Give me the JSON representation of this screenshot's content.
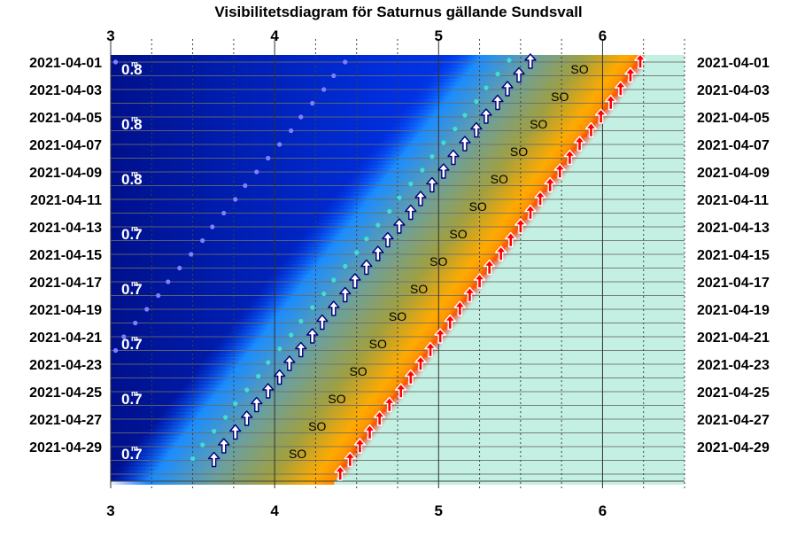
{
  "chart_data": {
    "type": "visibility-diagram",
    "title": "Visibilitetsdiagram för Saturnus gällande Sundsvall",
    "x_range": [
      3,
      6.5
    ],
    "x_ticks": [
      "3",
      "4",
      "5",
      "6"
    ],
    "x_tick_values": [
      3,
      4,
      5,
      6
    ],
    "dates": [
      "2021-04-01",
      "2021-04-03",
      "2021-04-05",
      "2021-04-07",
      "2021-04-09",
      "2021-04-11",
      "2021-04-13",
      "2021-04-15",
      "2021-04-17",
      "2021-04-19",
      "2021-04-21",
      "2021-04-23",
      "2021-04-25",
      "2021-04-27",
      "2021-04-29"
    ],
    "day_range": [
      1,
      31
    ],
    "planet_rise": [
      {
        "day": 1,
        "time": 5.56
      },
      {
        "day": 2,
        "time": 5.49
      },
      {
        "day": 3,
        "time": 5.42
      },
      {
        "day": 4,
        "time": 5.36
      },
      {
        "day": 5,
        "time": 5.29
      },
      {
        "day": 6,
        "time": 5.23
      },
      {
        "day": 7,
        "time": 5.16
      },
      {
        "day": 8,
        "time": 5.09
      },
      {
        "day": 9,
        "time": 5.03
      },
      {
        "day": 10,
        "time": 4.96
      },
      {
        "day": 11,
        "time": 4.89
      },
      {
        "day": 12,
        "time": 4.83
      },
      {
        "day": 13,
        "time": 4.76
      },
      {
        "day": 14,
        "time": 4.69
      },
      {
        "day": 15,
        "time": 4.63
      },
      {
        "day": 16,
        "time": 4.56
      },
      {
        "day": 17,
        "time": 4.49
      },
      {
        "day": 18,
        "time": 4.43
      },
      {
        "day": 19,
        "time": 4.36
      },
      {
        "day": 20,
        "time": 4.29
      },
      {
        "day": 21,
        "time": 4.23
      },
      {
        "day": 22,
        "time": 4.16
      },
      {
        "day": 23,
        "time": 4.09
      },
      {
        "day": 24,
        "time": 4.03
      },
      {
        "day": 25,
        "time": 3.96
      },
      {
        "day": 26,
        "time": 3.89
      },
      {
        "day": 27,
        "time": 3.83
      },
      {
        "day": 28,
        "time": 3.76
      },
      {
        "day": 29,
        "time": 3.69
      },
      {
        "day": 30,
        "time": 3.63
      }
    ],
    "sun_rise": [
      {
        "day": 1,
        "time": 6.23
      },
      {
        "day": 2,
        "time": 6.17
      },
      {
        "day": 3,
        "time": 6.11
      },
      {
        "day": 4,
        "time": 6.05
      },
      {
        "day": 5,
        "time": 5.99
      },
      {
        "day": 6,
        "time": 5.93
      },
      {
        "day": 7,
        "time": 5.86
      },
      {
        "day": 8,
        "time": 5.8
      },
      {
        "day": 9,
        "time": 5.74
      },
      {
        "day": 10,
        "time": 5.68
      },
      {
        "day": 11,
        "time": 5.62
      },
      {
        "day": 12,
        "time": 5.56
      },
      {
        "day": 13,
        "time": 5.5
      },
      {
        "day": 14,
        "time": 5.44
      },
      {
        "day": 15,
        "time": 5.38
      },
      {
        "day": 16,
        "time": 5.31
      },
      {
        "day": 17,
        "time": 5.25
      },
      {
        "day": 18,
        "time": 5.19
      },
      {
        "day": 19,
        "time": 5.13
      },
      {
        "day": 20,
        "time": 5.07
      },
      {
        "day": 21,
        "time": 5.01
      },
      {
        "day": 22,
        "time": 4.95
      },
      {
        "day": 23,
        "time": 4.89
      },
      {
        "day": 24,
        "time": 4.83
      },
      {
        "day": 25,
        "time": 4.77
      },
      {
        "day": 26,
        "time": 4.7
      },
      {
        "day": 27,
        "time": 4.64
      },
      {
        "day": 28,
        "time": 4.58
      },
      {
        "day": 29,
        "time": 4.52
      },
      {
        "day": 30,
        "time": 4.46
      },
      {
        "day": 31,
        "time": 4.4
      }
    ],
    "so_labels": [
      {
        "day": 1.5,
        "time": 5.86
      },
      {
        "day": 3.5,
        "time": 5.74
      },
      {
        "day": 5.5,
        "time": 5.61
      },
      {
        "day": 7.5,
        "time": 5.49
      },
      {
        "day": 9.5,
        "time": 5.37
      },
      {
        "day": 11.5,
        "time": 5.24
      },
      {
        "day": 13.5,
        "time": 5.12
      },
      {
        "day": 15.5,
        "time": 5.0
      },
      {
        "day": 17.5,
        "time": 4.88
      },
      {
        "day": 19.5,
        "time": 4.75
      },
      {
        "day": 21.5,
        "time": 4.63
      },
      {
        "day": 23.5,
        "time": 4.51
      },
      {
        "day": 25.5,
        "time": 4.38
      },
      {
        "day": 27.5,
        "time": 4.26
      },
      {
        "day": 29.5,
        "time": 4.14
      }
    ],
    "so_text": "SO",
    "magnitudes": [
      {
        "day": 1.5,
        "text": "0.8"
      },
      {
        "day": 5.5,
        "text": "0.8"
      },
      {
        "day": 9.5,
        "text": "0.8"
      },
      {
        "day": 13.5,
        "text": "0.7"
      },
      {
        "day": 17.5,
        "text": "0.7"
      },
      {
        "day": 21.5,
        "text": "0.7"
      },
      {
        "day": 25.5,
        "text": "0.7"
      },
      {
        "day": 29.5,
        "text": "0.7"
      }
    ],
    "magnitude_sup": "m",
    "moon_dots": [
      {
        "day": 1,
        "time": 3.03
      },
      {
        "day": 1,
        "time": 4.43
      },
      {
        "day": 2,
        "time": 4.36
      },
      {
        "day": 3,
        "time": 4.3
      },
      {
        "day": 4,
        "time": 4.23
      },
      {
        "day": 5,
        "time": 4.16
      },
      {
        "day": 6,
        "time": 4.1
      },
      {
        "day": 7,
        "time": 4.03
      },
      {
        "day": 8,
        "time": 3.96
      },
      {
        "day": 9,
        "time": 3.89
      },
      {
        "day": 10,
        "time": 3.82
      },
      {
        "day": 11,
        "time": 3.76
      },
      {
        "day": 12,
        "time": 3.69
      },
      {
        "day": 13,
        "time": 3.62
      },
      {
        "day": 14,
        "time": 3.56
      },
      {
        "day": 15,
        "time": 3.49
      },
      {
        "day": 16,
        "time": 3.42
      },
      {
        "day": 17,
        "time": 3.35
      },
      {
        "day": 18,
        "time": 3.29
      },
      {
        "day": 19,
        "time": 3.22
      },
      {
        "day": 20,
        "time": 3.15
      },
      {
        "day": 21,
        "time": 3.08
      },
      {
        "day": 22,
        "time": 3.03
      }
    ],
    "colors": {
      "night_dark": "#00108c",
      "night_blue": "#0040ff",
      "twilight_blue": "#1a8cff",
      "twilight_olive": "#a0a040",
      "twilight_orange": "#ffaa00",
      "day": "#c4f0e4",
      "grid": "#6b6b6b",
      "planet_arrow": "#ffffff",
      "planet_arrow_shadow": "#000080",
      "sun_arrow": "#ff0000",
      "dot_cyan": "#40e0d0",
      "dot_moon": "#8080ff"
    }
  }
}
